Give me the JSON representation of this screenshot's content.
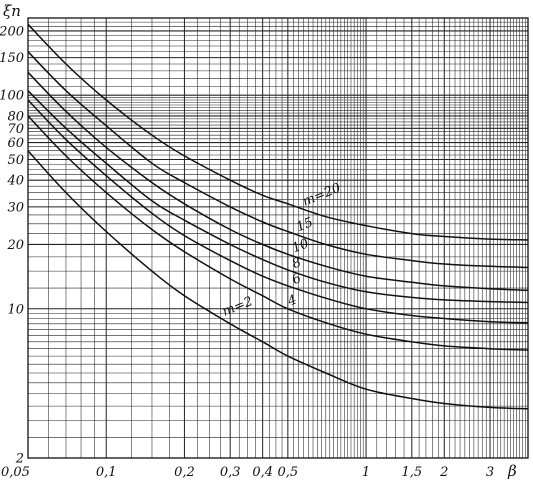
{
  "chart_data": {
    "type": "line",
    "title": "",
    "ylabel": "ξn",
    "xlabel": "β",
    "x_scale": "log",
    "y_scale": "log",
    "xlim": [
      0.05,
      4.2
    ],
    "ylim": [
      2,
      230
    ],
    "grid": true,
    "legend": "inline labels on curves",
    "x_ticks": [
      {
        "value": 0.05,
        "label": "0,05"
      },
      {
        "value": 0.1,
        "label": "0,1"
      },
      {
        "value": 0.2,
        "label": "0,2"
      },
      {
        "value": 0.3,
        "label": "0,3"
      },
      {
        "value": 0.4,
        "label": "0,4"
      },
      {
        "value": 0.5,
        "label": "0,5"
      },
      {
        "value": 1,
        "label": "1"
      },
      {
        "value": 1.5,
        "label": "1,5"
      },
      {
        "value": 2,
        "label": "2"
      },
      {
        "value": 3,
        "label": "3"
      }
    ],
    "y_ticks": [
      {
        "value": 2,
        "label": "2"
      },
      {
        "value": 10,
        "label": "10"
      },
      {
        "value": 20,
        "label": "20"
      },
      {
        "value": 30,
        "label": "30"
      },
      {
        "value": 40,
        "label": "40"
      },
      {
        "value": 50,
        "label": "50"
      },
      {
        "value": 60,
        "label": "60"
      },
      {
        "value": 70,
        "label": "70"
      },
      {
        "value": 80,
        "label": "80"
      },
      {
        "value": 100,
        "label": "100"
      },
      {
        "value": 150,
        "label": "150"
      },
      {
        "value": 200,
        "label": "200"
      }
    ],
    "series": [
      {
        "name": "m=20",
        "x": [
          0.05,
          0.07,
          0.1,
          0.15,
          0.2,
          0.3,
          0.4,
          0.5,
          0.7,
          1,
          1.5,
          2,
          3,
          4.2
        ],
        "values": [
          215,
          140,
          95,
          65,
          52,
          40,
          34,
          31,
          27,
          24.5,
          22.5,
          21.8,
          21.2,
          21
        ]
      },
      {
        "name": "15",
        "x": [
          0.05,
          0.07,
          0.1,
          0.15,
          0.2,
          0.3,
          0.4,
          0.5,
          0.7,
          1,
          1.5,
          2,
          3,
          4.2
        ],
        "values": [
          160,
          105,
          72,
          48,
          39,
          30,
          25.5,
          23,
          20,
          18,
          16.8,
          16.2,
          15.8,
          15.6
        ]
      },
      {
        "name": "10",
        "x": [
          0.05,
          0.07,
          0.1,
          0.15,
          0.2,
          0.3,
          0.4,
          0.5,
          0.7,
          1,
          1.5,
          2,
          3,
          4.2
        ],
        "values": [
          128,
          84,
          57,
          39,
          31,
          23.5,
          20,
          18,
          15.8,
          14.2,
          13.3,
          12.8,
          12.4,
          12.2
        ]
      },
      {
        "name": "8",
        "x": [
          0.05,
          0.07,
          0.1,
          0.15,
          0.2,
          0.3,
          0.4,
          0.5,
          0.7,
          1,
          1.5,
          2,
          3,
          4.2
        ],
        "values": [
          105,
          70,
          48,
          32,
          26,
          20,
          17,
          15.2,
          13.3,
          12,
          11.3,
          11,
          10.8,
          10.7
        ]
      },
      {
        "name": "6",
        "x": [
          0.05,
          0.07,
          0.1,
          0.15,
          0.2,
          0.3,
          0.4,
          0.5,
          0.7,
          1,
          1.5,
          2,
          3,
          4.2
        ],
        "values": [
          95,
          62,
          42,
          28,
          22,
          16.8,
          14.2,
          12.8,
          11.2,
          10,
          9.3,
          9,
          8.7,
          8.6
        ]
      },
      {
        "name": "4",
        "x": [
          0.05,
          0.07,
          0.1,
          0.15,
          0.2,
          0.3,
          0.4,
          0.5,
          0.7,
          1,
          1.5,
          2,
          3,
          4.2
        ],
        "values": [
          80,
          52,
          35,
          23.5,
          18.5,
          13.8,
          11.5,
          10,
          8.6,
          7.6,
          7,
          6.7,
          6.5,
          6.4
        ]
      },
      {
        "name": "m=2",
        "x": [
          0.05,
          0.07,
          0.1,
          0.15,
          0.2,
          0.3,
          0.4,
          0.5,
          0.7,
          1,
          1.5,
          2,
          3,
          4.2
        ],
        "values": [
          55,
          35,
          23,
          15,
          11.5,
          8.5,
          7,
          6,
          5,
          4.2,
          3.8,
          3.6,
          3.45,
          3.4
        ]
      }
    ]
  }
}
